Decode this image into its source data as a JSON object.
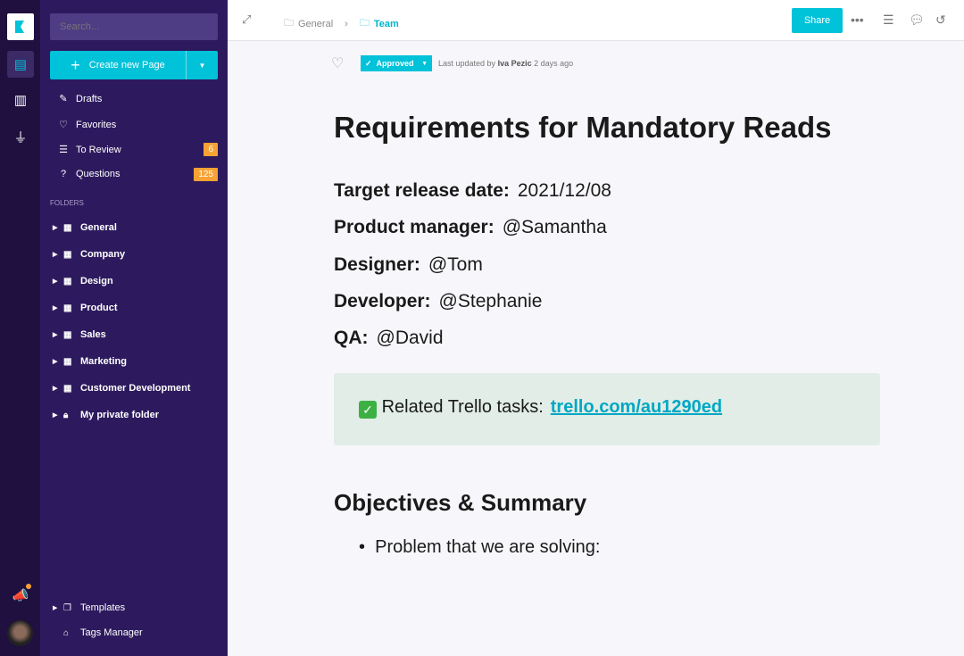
{
  "rail": {
    "icons": [
      "logo",
      "pages-icon",
      "analytics-icon",
      "plug-icon",
      "announcement-icon",
      "avatar"
    ]
  },
  "sidebar": {
    "search_placeholder": "Search...",
    "create_label": "Create new Page",
    "nav": [
      {
        "label": "Drafts"
      },
      {
        "label": "Favorites"
      },
      {
        "label": "To Review",
        "badge": "6"
      },
      {
        "label": "Questions",
        "badge": "125"
      }
    ],
    "folders_heading": "FOLDERS",
    "folders": [
      "General",
      "Company",
      "Design",
      "Product",
      "Sales",
      "Marketing",
      "Customer Development",
      "My private folder"
    ],
    "templates": "Templates",
    "tags_manager": "Tags Manager"
  },
  "header": {
    "breadcrumb": [
      "General",
      "Team"
    ],
    "share": "Share"
  },
  "meta": {
    "status": "Approved",
    "updated_prefix": "Last updated by",
    "updated_by": "Iva Pezic",
    "updated_when": "2 days ago"
  },
  "doc": {
    "title": "Requirements for Mandatory Reads",
    "fields": [
      {
        "k": "Target release date:",
        "v": "2021/12/08"
      },
      {
        "k": "Product manager:",
        "v": "@Samantha"
      },
      {
        "k": "Designer:",
        "v": "@Tom"
      },
      {
        "k": "Developer:",
        "v": "@Stephanie"
      },
      {
        "k": "QA:",
        "v": "@David"
      }
    ],
    "callout_text": "Related Trello tasks:",
    "callout_link": "trello.com/au1290ed",
    "section": "Objectives & Summary",
    "bullets": [
      "Problem that we are solving:"
    ]
  },
  "colors": {
    "accent": "#00c2d9",
    "sidebar": "#2d1a5e",
    "rail": "#1f1040",
    "badge": "#f7a234"
  }
}
